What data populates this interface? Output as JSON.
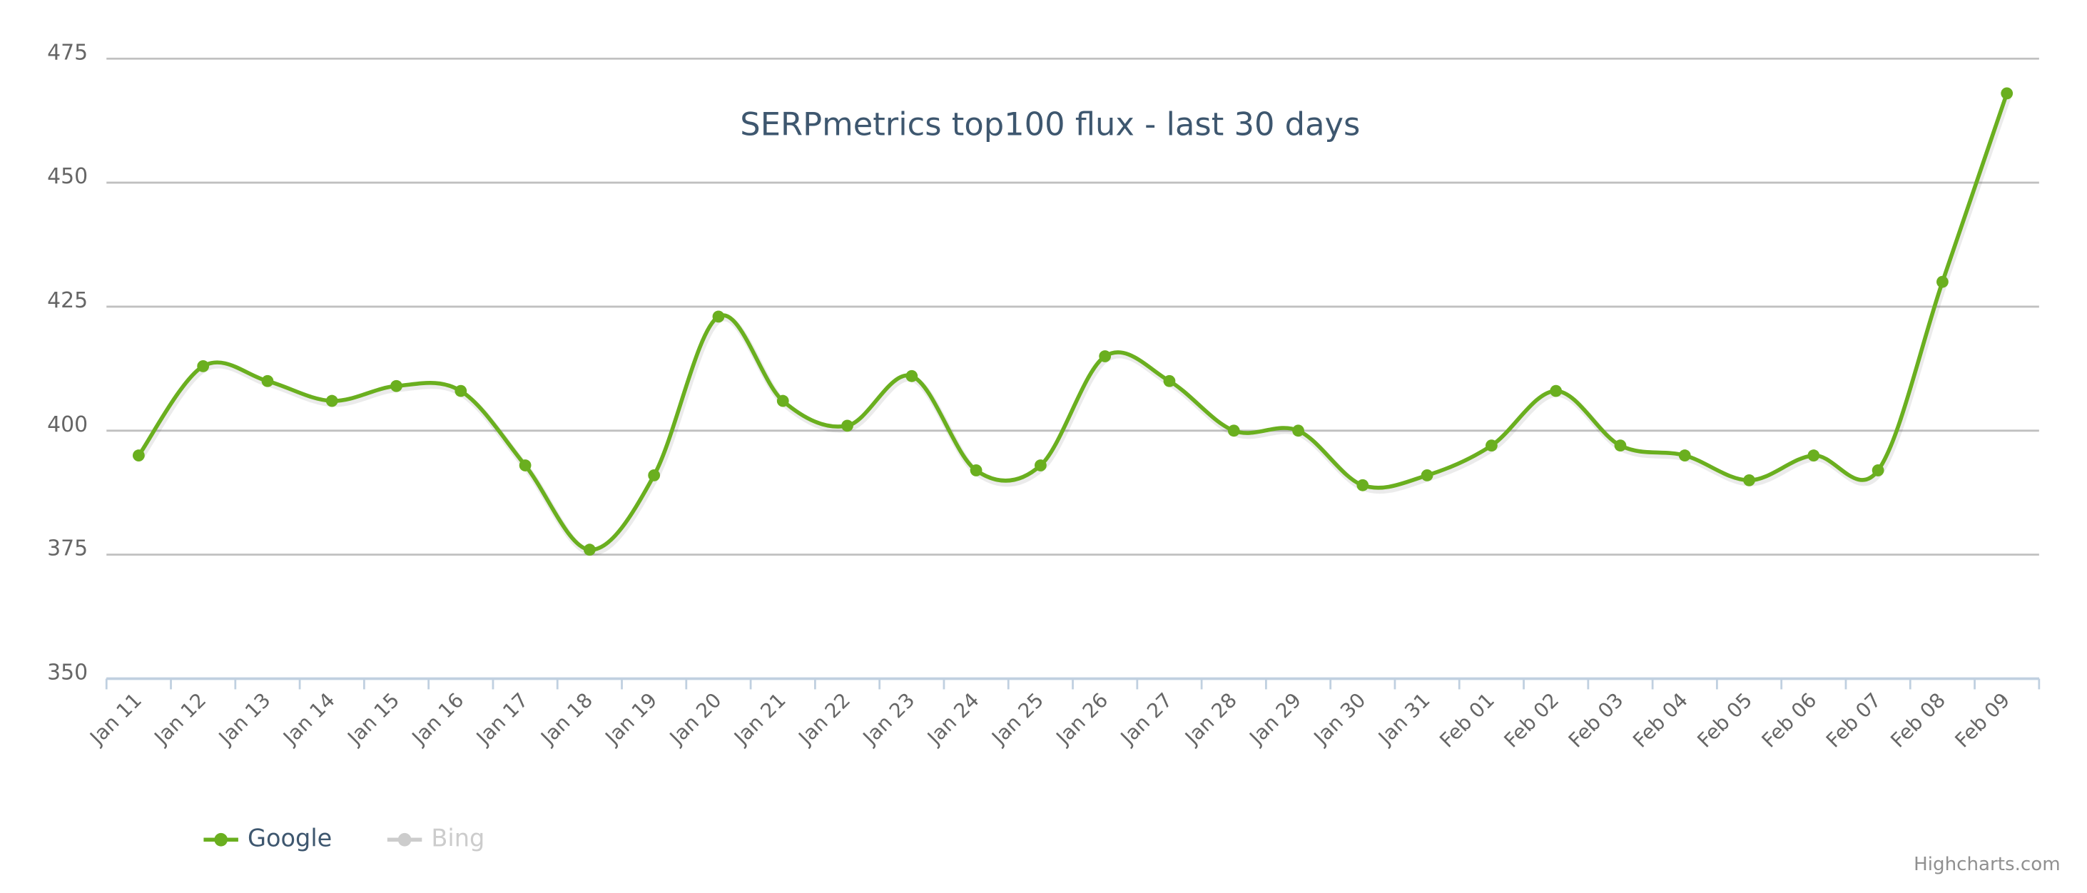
{
  "chart_data": {
    "type": "spline",
    "title": "SERPmetrics top100 flux - last 30 days",
    "categories": [
      "Jan 11",
      "Jan 12",
      "Jan 13",
      "Jan 14",
      "Jan 15",
      "Jan 16",
      "Jan 17",
      "Jan 18",
      "Jan 19",
      "Jan 20",
      "Jan 21",
      "Jan 22",
      "Jan 23",
      "Jan 24",
      "Jan 25",
      "Jan 26",
      "Jan 27",
      "Jan 28",
      "Jan 29",
      "Jan 30",
      "Jan 31",
      "Feb 01",
      "Feb 02",
      "Feb 03",
      "Feb 04",
      "Feb 05",
      "Feb 06",
      "Feb 07",
      "Feb 08",
      "Feb 09"
    ],
    "series": [
      {
        "name": "Google",
        "color": "#6aaf1f",
        "values": [
          395,
          413,
          410,
          406,
          409,
          408,
          393,
          376,
          391,
          423,
          406,
          401,
          411,
          392,
          393,
          415,
          410,
          400,
          400,
          389,
          391,
          397,
          408,
          397,
          395,
          390,
          395,
          392,
          430,
          468
        ]
      },
      {
        "name": "Bing",
        "color": "#cccccc",
        "values": [
          null,
          null,
          null,
          null,
          null,
          null,
          null,
          null,
          null,
          null,
          null,
          null,
          null,
          null,
          null,
          null,
          null,
          null,
          null,
          null,
          null,
          null,
          null,
          null,
          null,
          null,
          null,
          null,
          null,
          null
        ]
      }
    ],
    "ylim": [
      350,
      475
    ],
    "yticks": [
      350,
      375,
      400,
      425,
      450,
      475
    ],
    "grid": true,
    "credits": "Highcharts.com"
  }
}
